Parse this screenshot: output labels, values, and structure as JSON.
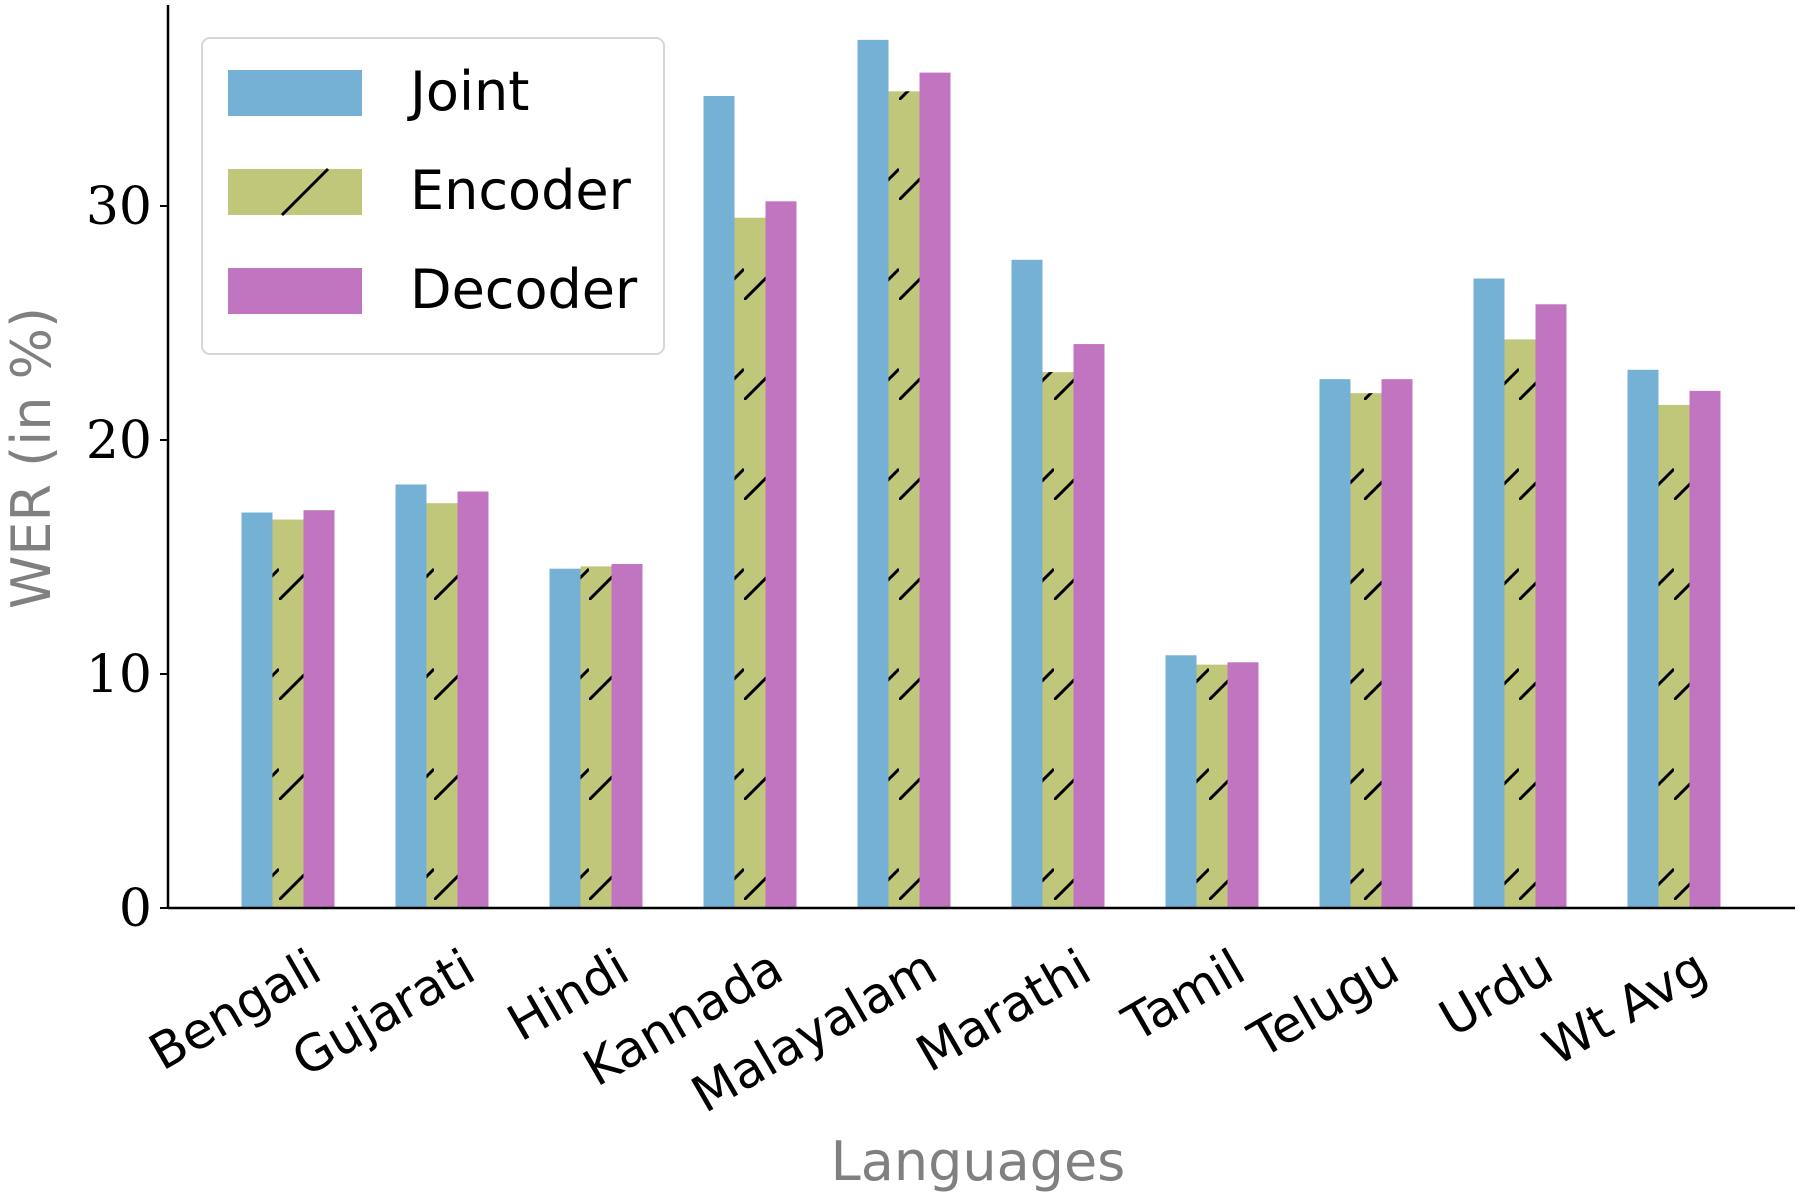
{
  "chart_data": {
    "type": "bar",
    "title": "",
    "xlabel": "Languages",
    "ylabel": "WER (in %)",
    "ylim": [
      0,
      39
    ],
    "yticks": [
      0,
      10,
      20,
      30
    ],
    "grid": false,
    "legend_position": "top-left",
    "categories": [
      "Bengali",
      "Gujarati",
      "Hindi",
      "Kannada",
      "Malayalam",
      "Marathi",
      "Tamil",
      "Telugu",
      "Urdu",
      "Wt Avg"
    ],
    "series": [
      {
        "name": "Joint",
        "color": "#74b1d4",
        "hatch": false,
        "values": [
          16.9,
          18.1,
          14.5,
          34.7,
          37.1,
          27.7,
          10.8,
          22.6,
          26.9,
          23.0
        ]
      },
      {
        "name": "Encoder",
        "color": "#c1c77a",
        "hatch": true,
        "values": [
          16.6,
          17.3,
          14.6,
          29.5,
          34.9,
          22.9,
          10.4,
          22.0,
          24.3,
          21.5
        ]
      },
      {
        "name": "Decoder",
        "color": "#c175c0",
        "hatch": false,
        "values": [
          17.0,
          17.8,
          14.7,
          30.2,
          35.7,
          24.1,
          10.5,
          22.6,
          25.8,
          22.1
        ]
      }
    ]
  }
}
